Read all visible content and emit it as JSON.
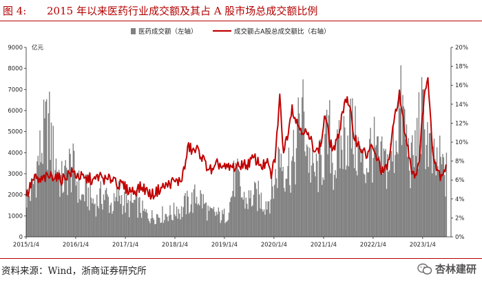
{
  "header": {
    "figure_label": "图 4:",
    "title": "2015 年以来医药行业成交额及其占 A 股市场总成交额比例"
  },
  "footer": {
    "source": "资料来源：Wind，浙商证券研究所",
    "watermark": "杏林建研"
  },
  "colors": {
    "accent": "#b30000",
    "bars": "#808080",
    "line": "#c00000"
  },
  "chart_data": {
    "type": "bar+line",
    "legend": [
      "医药成交额（左轴）",
      "成交额占A股总成交额比（右轴）"
    ],
    "legend_position": "top-center",
    "y_left": {
      "label": "亿元",
      "min": 0,
      "max": 9000,
      "ticks": [
        "0",
        "1000",
        "2000",
        "3000",
        "4000",
        "5000",
        "6000",
        "7000",
        "8000",
        "9000"
      ]
    },
    "y_right": {
      "min": 0,
      "max": 20,
      "ticks": [
        "0%",
        "2%",
        "4%",
        "6%",
        "8%",
        "10%",
        "12%",
        "14%",
        "16%",
        "18%",
        "20%"
      ]
    },
    "x_ticks": [
      "2015/1/4",
      "2016/1/4",
      "2017/1/4",
      "2018/1/4",
      "2019/1/4",
      "2020/1/4",
      "2021/1/4",
      "2022/1/4",
      "2023/1/4"
    ],
    "grid": false,
    "amount_monthly": [
      {
        "m": "2015-01",
        "v": 2000
      },
      {
        "m": "2015-02",
        "v": 2400
      },
      {
        "m": "2015-03",
        "v": 3300
      },
      {
        "m": "2015-04",
        "v": 4200
      },
      {
        "m": "2015-05",
        "v": 5000
      },
      {
        "m": "2015-06",
        "v": 5600
      },
      {
        "m": "2015-07",
        "v": 4200
      },
      {
        "m": "2015-08",
        "v": 3600
      },
      {
        "m": "2015-09",
        "v": 2700
      },
      {
        "m": "2015-10",
        "v": 2900
      },
      {
        "m": "2015-11",
        "v": 3500
      },
      {
        "m": "2015-12",
        "v": 3300
      },
      {
        "m": "2016-01",
        "v": 2700
      },
      {
        "m": "2016-02",
        "v": 1900
      },
      {
        "m": "2016-03",
        "v": 2300
      },
      {
        "m": "2016-04",
        "v": 2000
      },
      {
        "m": "2016-05",
        "v": 1700
      },
      {
        "m": "2016-06",
        "v": 1800
      },
      {
        "m": "2016-07",
        "v": 2100
      },
      {
        "m": "2016-08",
        "v": 2000
      },
      {
        "m": "2016-09",
        "v": 1600
      },
      {
        "m": "2016-10",
        "v": 1600
      },
      {
        "m": "2016-11",
        "v": 2200
      },
      {
        "m": "2016-12",
        "v": 1800
      },
      {
        "m": "2017-01",
        "v": 1500
      },
      {
        "m": "2017-02",
        "v": 1600
      },
      {
        "m": "2017-03",
        "v": 1700
      },
      {
        "m": "2017-04",
        "v": 1500
      },
      {
        "m": "2017-05",
        "v": 1200
      },
      {
        "m": "2017-06",
        "v": 1100
      },
      {
        "m": "2017-07",
        "v": 1000
      },
      {
        "m": "2017-08",
        "v": 1100
      },
      {
        "m": "2017-09",
        "v": 1100
      },
      {
        "m": "2017-10",
        "v": 1100
      },
      {
        "m": "2017-11",
        "v": 1200
      },
      {
        "m": "2017-12",
        "v": 1100
      },
      {
        "m": "2018-01",
        "v": 1500
      },
      {
        "m": "2018-02",
        "v": 1200
      },
      {
        "m": "2018-03",
        "v": 1600
      },
      {
        "m": "2018-04",
        "v": 1700
      },
      {
        "m": "2018-05",
        "v": 1800
      },
      {
        "m": "2018-06",
        "v": 2100
      },
      {
        "m": "2018-07",
        "v": 1900
      },
      {
        "m": "2018-08",
        "v": 1500
      },
      {
        "m": "2018-09",
        "v": 1100
      },
      {
        "m": "2018-10",
        "v": 1200
      },
      {
        "m": "2018-11",
        "v": 1100
      },
      {
        "m": "2018-12",
        "v": 1000
      },
      {
        "m": "2019-01",
        "v": 1100
      },
      {
        "m": "2019-02",
        "v": 1800
      },
      {
        "m": "2019-03",
        "v": 3000
      },
      {
        "m": "2019-04",
        "v": 2700
      },
      {
        "m": "2019-05",
        "v": 1900
      },
      {
        "m": "2019-06",
        "v": 1800
      },
      {
        "m": "2019-07",
        "v": 1900
      },
      {
        "m": "2019-08",
        "v": 2000
      },
      {
        "m": "2019-09",
        "v": 2000
      },
      {
        "m": "2019-10",
        "v": 1700
      },
      {
        "m": "2019-11",
        "v": 1800
      },
      {
        "m": "2019-12",
        "v": 2200
      },
      {
        "m": "2020-01",
        "v": 3000
      },
      {
        "m": "2020-02",
        "v": 4300
      },
      {
        "m": "2020-03",
        "v": 3500
      },
      {
        "m": "2020-04",
        "v": 3600
      },
      {
        "m": "2020-05",
        "v": 3600
      },
      {
        "m": "2020-06",
        "v": 4200
      },
      {
        "m": "2020-07",
        "v": 6500
      },
      {
        "m": "2020-08",
        "v": 5600
      },
      {
        "m": "2020-09",
        "v": 3900
      },
      {
        "m": "2020-10",
        "v": 3100
      },
      {
        "m": "2020-11",
        "v": 3300
      },
      {
        "m": "2020-12",
        "v": 3700
      },
      {
        "m": "2021-01",
        "v": 4500
      },
      {
        "m": "2021-02",
        "v": 5000
      },
      {
        "m": "2021-03",
        "v": 3500
      },
      {
        "m": "2021-04",
        "v": 4000
      },
      {
        "m": "2021-05",
        "v": 4500
      },
      {
        "m": "2021-06",
        "v": 5100
      },
      {
        "m": "2021-07",
        "v": 5500
      },
      {
        "m": "2021-08",
        "v": 4800
      },
      {
        "m": "2021-09",
        "v": 4200
      },
      {
        "m": "2021-10",
        "v": 3500
      },
      {
        "m": "2021-11",
        "v": 3600
      },
      {
        "m": "2021-12",
        "v": 4500
      },
      {
        "m": "2022-01",
        "v": 4200
      },
      {
        "m": "2022-02",
        "v": 3600
      },
      {
        "m": "2022-03",
        "v": 3600
      },
      {
        "m": "2022-04",
        "v": 3700
      },
      {
        "m": "2022-05",
        "v": 3800
      },
      {
        "m": "2022-06",
        "v": 5000
      },
      {
        "m": "2022-07",
        "v": 6300
      },
      {
        "m": "2022-08",
        "v": 5800
      },
      {
        "m": "2022-09",
        "v": 4200
      },
      {
        "m": "2022-10",
        "v": 3600
      },
      {
        "m": "2022-11",
        "v": 4600
      },
      {
        "m": "2022-12",
        "v": 5900
      },
      {
        "m": "2023-01",
        "v": 5500
      },
      {
        "m": "2023-02",
        "v": 4800
      },
      {
        "m": "2023-03",
        "v": 3500
      },
      {
        "m": "2023-04",
        "v": 3600
      },
      {
        "m": "2023-05",
        "v": 3600
      },
      {
        "m": "2023-06",
        "v": 3100
      }
    ],
    "share_monthly": [
      {
        "m": "2015-01",
        "v": 4.5
      },
      {
        "m": "2015-02",
        "v": 5.8
      },
      {
        "m": "2015-03",
        "v": 6.2
      },
      {
        "m": "2015-04",
        "v": 5.8
      },
      {
        "m": "2015-05",
        "v": 6.2
      },
      {
        "m": "2015-06",
        "v": 6.3
      },
      {
        "m": "2015-07",
        "v": 6.5
      },
      {
        "m": "2015-08",
        "v": 6.4
      },
      {
        "m": "2015-09",
        "v": 6.0
      },
      {
        "m": "2015-10",
        "v": 6.3
      },
      {
        "m": "2015-11",
        "v": 6.7
      },
      {
        "m": "2015-12",
        "v": 6.8
      },
      {
        "m": "2016-01",
        "v": 6.5
      },
      {
        "m": "2016-02",
        "v": 6.3
      },
      {
        "m": "2016-03",
        "v": 6.0
      },
      {
        "m": "2016-04",
        "v": 6.2
      },
      {
        "m": "2016-05",
        "v": 5.8
      },
      {
        "m": "2016-06",
        "v": 6.4
      },
      {
        "m": "2016-07",
        "v": 6.3
      },
      {
        "m": "2016-08",
        "v": 5.9
      },
      {
        "m": "2016-09",
        "v": 6.1
      },
      {
        "m": "2016-10",
        "v": 6.3
      },
      {
        "m": "2016-11",
        "v": 5.4
      },
      {
        "m": "2016-12",
        "v": 5.5
      },
      {
        "m": "2017-01",
        "v": 5.0
      },
      {
        "m": "2017-02",
        "v": 4.9
      },
      {
        "m": "2017-03",
        "v": 4.8
      },
      {
        "m": "2017-04",
        "v": 5.2
      },
      {
        "m": "2017-05",
        "v": 5.2
      },
      {
        "m": "2017-06",
        "v": 4.8
      },
      {
        "m": "2017-07",
        "v": 4.4
      },
      {
        "m": "2017-08",
        "v": 4.7
      },
      {
        "m": "2017-09",
        "v": 5.1
      },
      {
        "m": "2017-10",
        "v": 5.3
      },
      {
        "m": "2017-11",
        "v": 5.5
      },
      {
        "m": "2017-12",
        "v": 5.8
      },
      {
        "m": "2018-01",
        "v": 5.8
      },
      {
        "m": "2018-02",
        "v": 5.9
      },
      {
        "m": "2018-03",
        "v": 7.2
      },
      {
        "m": "2018-04",
        "v": 9.6
      },
      {
        "m": "2018-05",
        "v": 9.0
      },
      {
        "m": "2018-06",
        "v": 9.2
      },
      {
        "m": "2018-07",
        "v": 8.7
      },
      {
        "m": "2018-08",
        "v": 7.7
      },
      {
        "m": "2018-09",
        "v": 7.2
      },
      {
        "m": "2018-10",
        "v": 6.8
      },
      {
        "m": "2018-11",
        "v": 7.8
      },
      {
        "m": "2018-12",
        "v": 7.4
      },
      {
        "m": "2019-01",
        "v": 7.2
      },
      {
        "m": "2019-02",
        "v": 7.3
      },
      {
        "m": "2019-03",
        "v": 7.4
      },
      {
        "m": "2019-04",
        "v": 7.3
      },
      {
        "m": "2019-05",
        "v": 7.8
      },
      {
        "m": "2019-06",
        "v": 7.5
      },
      {
        "m": "2019-07",
        "v": 8.0
      },
      {
        "m": "2019-08",
        "v": 8.3
      },
      {
        "m": "2019-09",
        "v": 7.8
      },
      {
        "m": "2019-10",
        "v": 7.5
      },
      {
        "m": "2019-11",
        "v": 7.8
      },
      {
        "m": "2019-12",
        "v": 6.5
      },
      {
        "m": "2020-01",
        "v": 8.5
      },
      {
        "m": "2020-02",
        "v": 14.8
      },
      {
        "m": "2020-03",
        "v": 9.0
      },
      {
        "m": "2020-04",
        "v": 11.0
      },
      {
        "m": "2020-05",
        "v": 13.8
      },
      {
        "m": "2020-06",
        "v": 12.2
      },
      {
        "m": "2020-07",
        "v": 11.5
      },
      {
        "m": "2020-08",
        "v": 11.2
      },
      {
        "m": "2020-09",
        "v": 10.5
      },
      {
        "m": "2020-10",
        "v": 9.8
      },
      {
        "m": "2020-11",
        "v": 9.0
      },
      {
        "m": "2020-12",
        "v": 9.7
      },
      {
        "m": "2021-01",
        "v": 13.0
      },
      {
        "m": "2021-02",
        "v": 10.2
      },
      {
        "m": "2021-03",
        "v": 9.2
      },
      {
        "m": "2021-04",
        "v": 10.0
      },
      {
        "m": "2021-05",
        "v": 12.5
      },
      {
        "m": "2021-06",
        "v": 14.8
      },
      {
        "m": "2021-07",
        "v": 13.5
      },
      {
        "m": "2021-08",
        "v": 10.8
      },
      {
        "m": "2021-09",
        "v": 9.8
      },
      {
        "m": "2021-10",
        "v": 9.2
      },
      {
        "m": "2021-11",
        "v": 8.5
      },
      {
        "m": "2021-12",
        "v": 9.5
      },
      {
        "m": "2022-01",
        "v": 8.8
      },
      {
        "m": "2022-02",
        "v": 7.8
      },
      {
        "m": "2022-03",
        "v": 6.8
      },
      {
        "m": "2022-04",
        "v": 7.2
      },
      {
        "m": "2022-05",
        "v": 9.5
      },
      {
        "m": "2022-06",
        "v": 13.0
      },
      {
        "m": "2022-07",
        "v": 15.2
      },
      {
        "m": "2022-08",
        "v": 12.0
      },
      {
        "m": "2022-09",
        "v": 9.5
      },
      {
        "m": "2022-10",
        "v": 7.2
      },
      {
        "m": "2022-11",
        "v": 6.5
      },
      {
        "m": "2022-12",
        "v": 8.8
      },
      {
        "m": "2023-01",
        "v": 15.2
      },
      {
        "m": "2023-02",
        "v": 16.5
      },
      {
        "m": "2023-03",
        "v": 9.5
      },
      {
        "m": "2023-04",
        "v": 7.5
      },
      {
        "m": "2023-05",
        "v": 6.5
      },
      {
        "m": "2023-06",
        "v": 7.2
      }
    ]
  }
}
